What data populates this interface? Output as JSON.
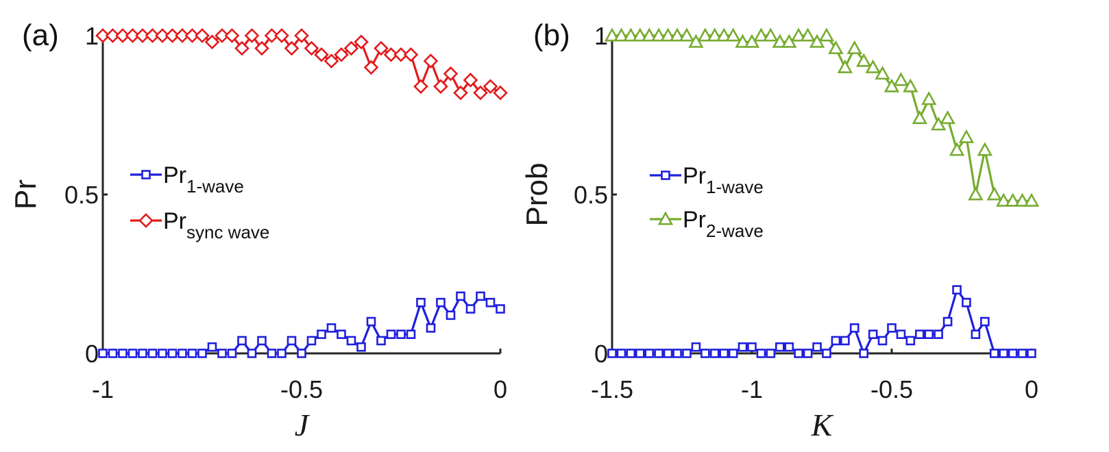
{
  "chart_data": [
    {
      "type": "line",
      "panel_label": "(a)",
      "xlabel": "J",
      "ylabel": "Pr",
      "xlim": [
        -1,
        0
      ],
      "ylim": [
        0,
        1
      ],
      "xticks": [
        -1,
        -0.5,
        0
      ],
      "xtick_labels": [
        "-1",
        "-0.5",
        "0"
      ],
      "yticks": [
        0,
        0.5,
        1
      ],
      "ytick_labels": [
        "0",
        "0.5",
        "1"
      ],
      "legend_position": "center-left",
      "x": [
        -1.0,
        -0.975,
        -0.95,
        -0.925,
        -0.9,
        -0.875,
        -0.85,
        -0.825,
        -0.8,
        -0.775,
        -0.75,
        -0.725,
        -0.7,
        -0.675,
        -0.65,
        -0.625,
        -0.6,
        -0.575,
        -0.55,
        -0.525,
        -0.5,
        -0.475,
        -0.45,
        -0.425,
        -0.4,
        -0.375,
        -0.35,
        -0.325,
        -0.3,
        -0.275,
        -0.25,
        -0.225,
        -0.2,
        -0.175,
        -0.15,
        -0.125,
        -0.1,
        -0.075,
        -0.05,
        -0.025,
        0.0
      ],
      "series": [
        {
          "name": "Pr",
          "subscript": "1-wave",
          "color": "#1f1fdd",
          "marker": "square",
          "values": [
            0,
            0,
            0,
            0,
            0,
            0,
            0,
            0,
            0,
            0,
            0,
            0.02,
            0,
            0,
            0.04,
            0,
            0.04,
            0,
            0,
            0.04,
            0,
            0.04,
            0.06,
            0.08,
            0.06,
            0.04,
            0.02,
            0.1,
            0.04,
            0.06,
            0.06,
            0.06,
            0.16,
            0.08,
            0.16,
            0.12,
            0.18,
            0.14,
            0.18,
            0.16,
            0.14
          ]
        },
        {
          "name": "Pr",
          "subscript": "sync wave",
          "color": "#e31a1c",
          "marker": "diamond",
          "values": [
            1,
            1,
            1,
            1,
            1,
            1,
            1,
            1,
            1,
            1,
            1,
            0.98,
            1,
            1,
            0.96,
            1,
            0.96,
            1,
            1,
            0.96,
            1,
            0.96,
            0.94,
            0.92,
            0.94,
            0.96,
            0.98,
            0.9,
            0.96,
            0.94,
            0.94,
            0.94,
            0.84,
            0.92,
            0.84,
            0.88,
            0.82,
            0.86,
            0.82,
            0.84,
            0.82
          ]
        }
      ]
    },
    {
      "type": "line",
      "panel_label": "(b)",
      "xlabel": "K",
      "ylabel": "Prob",
      "xlim": [
        -1.5,
        0
      ],
      "ylim": [
        0,
        1
      ],
      "xticks": [
        -1.5,
        -1,
        -0.5,
        0
      ],
      "xtick_labels": [
        "-1.5",
        "-1",
        "-0.5",
        "0"
      ],
      "yticks": [
        0,
        0.5,
        1
      ],
      "ytick_labels": [
        "0",
        "0.5",
        "1"
      ],
      "legend_position": "center-left",
      "x": [
        -1.5,
        -1.467,
        -1.433,
        -1.4,
        -1.367,
        -1.333,
        -1.3,
        -1.267,
        -1.233,
        -1.2,
        -1.167,
        -1.133,
        -1.1,
        -1.067,
        -1.033,
        -1.0,
        -0.967,
        -0.933,
        -0.9,
        -0.867,
        -0.833,
        -0.8,
        -0.767,
        -0.733,
        -0.7,
        -0.667,
        -0.633,
        -0.6,
        -0.567,
        -0.533,
        -0.5,
        -0.467,
        -0.433,
        -0.4,
        -0.367,
        -0.333,
        -0.3,
        -0.267,
        -0.233,
        -0.2,
        -0.167,
        -0.133,
        -0.1,
        -0.067,
        -0.033,
        0.0
      ],
      "series": [
        {
          "name": "Pr",
          "subscript": "1-wave",
          "color": "#1f1fdd",
          "marker": "square",
          "values": [
            0,
            0,
            0,
            0,
            0,
            0,
            0,
            0,
            0,
            0.02,
            0,
            0,
            0,
            0,
            0.02,
            0.02,
            0,
            0,
            0.02,
            0.02,
            0,
            0,
            0.02,
            0,
            0.04,
            0.04,
            0.08,
            0,
            0.06,
            0.04,
            0.08,
            0.06,
            0.04,
            0.06,
            0.06,
            0.06,
            0.1,
            0.2,
            0.16,
            0.06,
            0.1,
            0,
            0,
            0,
            0,
            0
          ]
        },
        {
          "name": "Pr",
          "subscript": "2-wave",
          "color": "#77ac30",
          "marker": "triangle",
          "values": [
            1,
            1,
            1,
            1,
            1,
            1,
            1,
            1,
            1,
            0.98,
            1,
            1,
            1,
            1,
            0.98,
            0.98,
            1,
            1,
            0.98,
            0.98,
            1,
            1,
            0.98,
            1,
            0.96,
            0.9,
            0.96,
            0.92,
            0.9,
            0.88,
            0.84,
            0.86,
            0.84,
            0.74,
            0.8,
            0.72,
            0.74,
            0.64,
            0.68,
            0.5,
            0.64,
            0.5,
            0.48,
            0.48,
            0.48,
            0.48
          ]
        }
      ]
    }
  ]
}
